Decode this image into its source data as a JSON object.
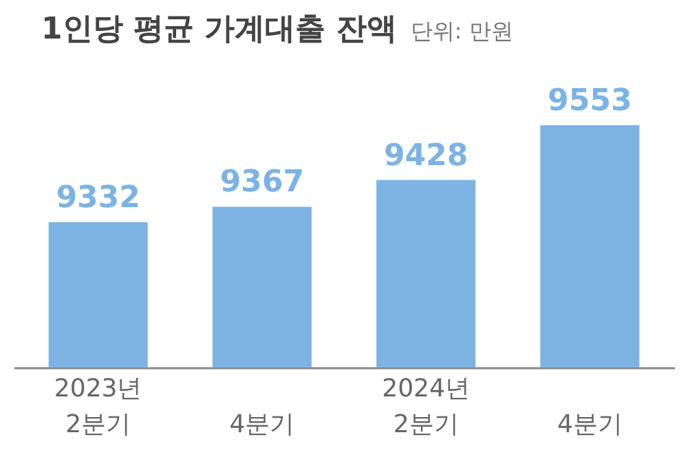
{
  "chart_data": {
    "type": "bar",
    "title": "1인당 평균 가계대출 잔액",
    "subtitle": "단위: 만원",
    "categories": [
      "2023년 2분기",
      "4분기",
      "2024년 2분기",
      "4분기"
    ],
    "values": [
      9332,
      9367,
      9428,
      9553
    ],
    "color": "#7db3e2",
    "ylim": [
      9000,
      9553
    ],
    "data_labels": true,
    "grid": false
  }
}
